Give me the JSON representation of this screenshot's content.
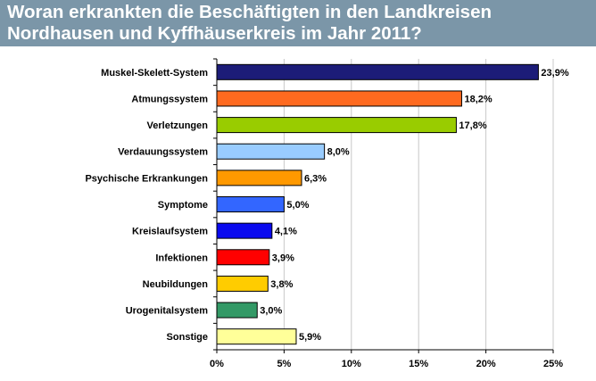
{
  "header": {
    "title_line1": "Woran erkrankten die Beschäftigten in den Landkreisen",
    "title_line2": "Nordhausen und Kyffhäuserkreis im Jahr 2011?"
  },
  "chart_data": {
    "type": "bar",
    "orientation": "horizontal",
    "categories": [
      "Muskel-Skelett-System",
      "Atmungssystem",
      "Verletzungen",
      "Verdauungssystem",
      "Psychische Erkrankungen",
      "Symptome",
      "Kreislaufsystem",
      "Infektionen",
      "Neubildungen",
      "Urogenitalsystem",
      "Sonstige"
    ],
    "values": [
      23.9,
      18.2,
      17.8,
      8.0,
      6.3,
      5.0,
      4.1,
      3.9,
      3.8,
      3.0,
      5.9
    ],
    "data_labels": [
      "23,9%",
      "18,2%",
      "17,8%",
      "8,0%",
      "6,3%",
      "5,0%",
      "4,1%",
      "3,9%",
      "3,8%",
      "3,0%",
      "5,9%"
    ],
    "colors": [
      "#1c1c78",
      "#ff6a1f",
      "#99cc00",
      "#99ccff",
      "#ff9900",
      "#3366ff",
      "#0a0aee",
      "#ff0000",
      "#ffcc00",
      "#339966",
      "#ffff99"
    ],
    "xlim": [
      0,
      25
    ],
    "xticks": [
      0,
      5,
      10,
      15,
      20,
      25
    ],
    "xtick_labels": [
      "0%",
      "5%",
      "10%",
      "15%",
      "20%",
      "25%"
    ],
    "grid": true,
    "legend": "none"
  }
}
